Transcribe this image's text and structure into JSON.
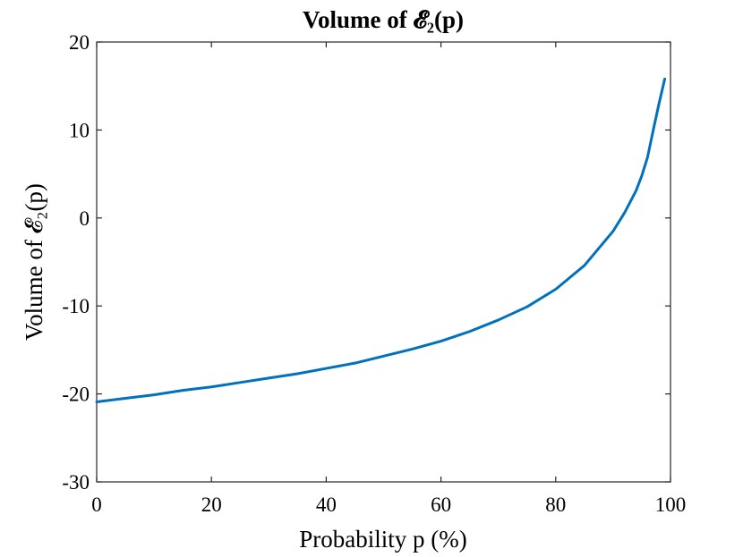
{
  "chart_data": {
    "type": "line",
    "title": "Volume of 𝓔₂(p)",
    "xlabel": "Probability p (%)",
    "ylabel": "Volume of 𝓔₂(p)",
    "xlim": [
      0,
      100
    ],
    "ylim": [
      -30,
      20
    ],
    "xticks": [
      0,
      20,
      40,
      60,
      80,
      100
    ],
    "yticks": [
      -30,
      -20,
      -10,
      0,
      10,
      20
    ],
    "xtick_labels": [
      "0",
      "20",
      "40",
      "60",
      "80",
      "100"
    ],
    "ytick_labels": [
      "-30",
      "-20",
      "-10",
      "0",
      "10",
      "20"
    ],
    "grid": false,
    "series": [
      {
        "color": "#0072BD",
        "x": [
          0,
          5,
          10,
          15,
          20,
          25,
          30,
          35,
          40,
          45,
          50,
          55,
          60,
          65,
          70,
          75,
          80,
          85,
          90,
          92,
          94,
          95,
          96,
          97,
          98,
          99
        ],
        "y": [
          -20.9,
          -20.5,
          -20.1,
          -19.6,
          -19.2,
          -18.7,
          -18.2,
          -17.7,
          -17.1,
          -16.5,
          -15.7,
          -14.9,
          -14.0,
          -12.9,
          -11.6,
          -10.1,
          -8.1,
          -5.4,
          -1.5,
          0.6,
          3.1,
          4.8,
          6.9,
          10.0,
          13.0,
          15.8
        ]
      }
    ]
  }
}
